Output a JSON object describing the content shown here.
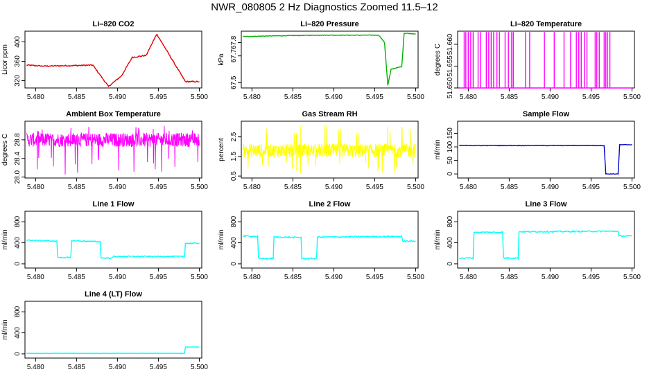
{
  "title": "NWR_080805  2 Hz Diagnostics Zoomed 11.5–12",
  "chart_data": [
    {
      "type": "line",
      "title": "Li–820 CO2",
      "ylabel": "Licor ppm",
      "color": "#e00000",
      "x_ticks": [
        "5.480",
        "5.485",
        "5.490",
        "5.495",
        "5.500"
      ],
      "y_ticks": [
        {
          "v": 320,
          "l": "320"
        },
        {
          "v": 360,
          "l": "360"
        },
        {
          "v": 400,
          "l": "400"
        }
      ],
      "ylim": [
        305,
        422
      ],
      "xlim": [
        5.4787,
        5.5003
      ],
      "noise": 1.2,
      "steps": [
        [
          5.4789,
          352
        ],
        [
          5.481,
          350
        ],
        [
          5.487,
          352
        ],
        [
          5.4889,
          308
        ],
        [
          5.4905,
          330
        ],
        [
          5.4918,
          368
        ],
        [
          5.4935,
          372
        ],
        [
          5.4948,
          416
        ],
        [
          5.4983,
          318
        ],
        [
          5.5,
          318
        ]
      ]
    },
    {
      "type": "line",
      "title": "Li–820 Pressure",
      "ylabel": "kPa",
      "color": "#00b000",
      "x_ticks": [
        "5.480",
        "5.485",
        "5.490",
        "5.495",
        "5.500"
      ],
      "y_ticks": [
        {
          "v": 67.5,
          "l": "67.5"
        },
        {
          "v": 67.7,
          "l": "67.7"
        },
        {
          "v": 67.8,
          "l": "67.8"
        }
      ],
      "ylim": [
        67.46,
        67.885
      ],
      "xlim": [
        5.4787,
        5.5003
      ],
      "noise": 0.002,
      "steps": [
        [
          5.4789,
          67.845
        ],
        [
          5.483,
          67.85
        ],
        [
          5.488,
          67.855
        ],
        [
          5.4955,
          67.855
        ],
        [
          5.4962,
          67.8
        ],
        [
          5.4966,
          67.48
        ],
        [
          5.497,
          67.6
        ],
        [
          5.4983,
          67.62
        ],
        [
          5.4986,
          67.87
        ],
        [
          5.5,
          67.865
        ]
      ]
    },
    {
      "type": "spike",
      "title": "Li–820 Temperature",
      "ylabel": "degrees C",
      "color": "#ff00ff",
      "x_ticks": [
        "5.480",
        "5.485",
        "5.490",
        "5.495",
        "5.500"
      ],
      "y_ticks": [
        {
          "v": 51.65,
          "l": "51.650"
        },
        {
          "v": 51.655,
          "l": "51.655"
        },
        {
          "v": 51.66,
          "l": "51.660"
        }
      ],
      "ylim": [
        51.65,
        51.663
      ],
      "xlim": [
        5.4787,
        5.5003
      ],
      "base": 51.65,
      "top": 51.6628,
      "spikes": [
        5.4795,
        5.4797,
        5.48,
        5.4803,
        5.4806,
        5.4812,
        5.4815,
        5.4822,
        5.4825,
        5.4828,
        5.4831,
        5.4835,
        5.4838,
        5.4845,
        5.4849,
        5.4853,
        5.4855,
        5.487,
        5.4875,
        5.4893,
        5.4905,
        5.4917,
        5.4925,
        5.4932,
        5.4935,
        5.4938,
        5.4942,
        5.4945,
        5.4955,
        5.4957,
        5.496,
        5.4966,
        5.4968,
        5.497,
        5.4973
      ]
    },
    {
      "type": "noise",
      "title": "Ambient Box Temperature",
      "ylabel": "degrees C",
      "color": "#ff00ff",
      "x_ticks": [
        "5.480",
        "5.485",
        "5.490",
        "5.495",
        "5.500"
      ],
      "y_ticks": [
        {
          "v": 28.0,
          "l": "28.0"
        },
        {
          "v": 28.4,
          "l": "28.4"
        },
        {
          "v": 28.8,
          "l": "28.8"
        }
      ],
      "ylim": [
        27.98,
        29.2
      ],
      "xlim": [
        5.4787,
        5.5003
      ],
      "center": 28.8,
      "spread": 0.15,
      "outlier_lo": 28.05,
      "outlier_hi": 29.1
    },
    {
      "type": "noise",
      "title": "Gas Stream RH",
      "ylabel": "percent",
      "color": "#ffff00",
      "x_ticks": [
        "5.480",
        "5.485",
        "5.490",
        "5.495",
        "5.500"
      ],
      "y_ticks": [
        {
          "v": 0.5,
          "l": "0.5"
        },
        {
          "v": 1.5,
          "l": "1.5"
        },
        {
          "v": 2.5,
          "l": "2.5"
        }
      ],
      "ylim": [
        0.4,
        3.3
      ],
      "xlim": [
        5.4787,
        5.5003
      ],
      "center": 1.8,
      "spread": 0.35,
      "outlier_lo": 0.6,
      "outlier_hi": 3.1
    },
    {
      "type": "line",
      "title": "Sample Flow",
      "ylabel": "ml/min",
      "color": "#0000cc",
      "x_ticks": [
        "5.480",
        "5.485",
        "5.490",
        "5.495",
        "5.500"
      ],
      "y_ticks": [
        {
          "v": 0,
          "l": "0"
        },
        {
          "v": 50,
          "l": "50"
        },
        {
          "v": 100,
          "l": "100"
        },
        {
          "v": 150,
          "l": "150"
        }
      ],
      "ylim": [
        -15,
        195
      ],
      "xlim": [
        5.4787,
        5.5003
      ],
      "noise": 1.0,
      "steps": [
        [
          5.4789,
          105
        ],
        [
          5.4966,
          105
        ],
        [
          5.4968,
          0
        ],
        [
          5.4983,
          0
        ],
        [
          5.4985,
          108
        ],
        [
          5.5,
          108
        ]
      ]
    },
    {
      "type": "line",
      "title": "Line 1 Flow",
      "ylabel": "ml/min",
      "color": "#00ffff",
      "x_ticks": [
        "5.480",
        "5.485",
        "5.490",
        "5.495",
        "5.500"
      ],
      "y_ticks": [
        {
          "v": 0,
          "l": "0"
        },
        {
          "v": 400,
          "l": "400"
        },
        {
          "v": 800,
          "l": "800"
        }
      ],
      "ylim": [
        -80,
        1000
      ],
      "xlim": [
        5.4787,
        5.5003
      ],
      "noise": 10,
      "steps": [
        [
          5.4789,
          450
        ],
        [
          5.4826,
          430
        ],
        [
          5.4827,
          120
        ],
        [
          5.4843,
          120
        ],
        [
          5.4844,
          440
        ],
        [
          5.4879,
          420
        ],
        [
          5.488,
          110
        ],
        [
          5.4894,
          110
        ],
        [
          5.4895,
          140
        ],
        [
          5.4982,
          140
        ],
        [
          5.4983,
          390
        ],
        [
          5.5,
          390
        ]
      ]
    },
    {
      "type": "line",
      "title": "Line 2 Flow",
      "ylabel": "ml/min",
      "color": "#00ffff",
      "x_ticks": [
        "5.480",
        "5.485",
        "5.490",
        "5.495",
        "5.500"
      ],
      "y_ticks": [
        {
          "v": 0,
          "l": "0"
        },
        {
          "v": 400,
          "l": "400"
        },
        {
          "v": 800,
          "l": "800"
        }
      ],
      "ylim": [
        -80,
        1000
      ],
      "xlim": [
        5.4787,
        5.5003
      ],
      "noise": 12,
      "steps": [
        [
          5.4789,
          530
        ],
        [
          5.4807,
          520
        ],
        [
          5.4808,
          100
        ],
        [
          5.4826,
          100
        ],
        [
          5.4827,
          510
        ],
        [
          5.486,
          500
        ],
        [
          5.4861,
          100
        ],
        [
          5.4879,
          100
        ],
        [
          5.488,
          510
        ],
        [
          5.4983,
          520
        ],
        [
          5.4984,
          430
        ],
        [
          5.5,
          430
        ]
      ]
    },
    {
      "type": "line",
      "title": "Line 3 Flow",
      "ylabel": "ml/min",
      "color": "#00ffff",
      "x_ticks": [
        "5.480",
        "5.485",
        "5.490",
        "5.495",
        "5.500"
      ],
      "y_ticks": [
        {
          "v": 0,
          "l": "0"
        },
        {
          "v": 400,
          "l": "400"
        },
        {
          "v": 800,
          "l": "800"
        }
      ],
      "ylim": [
        -80,
        1000
      ],
      "xlim": [
        5.4787,
        5.5003
      ],
      "noise": 12,
      "steps": [
        [
          5.4789,
          110
        ],
        [
          5.4806,
          110
        ],
        [
          5.4807,
          600
        ],
        [
          5.4842,
          600
        ],
        [
          5.4843,
          110
        ],
        [
          5.4861,
          110
        ],
        [
          5.4862,
          610
        ],
        [
          5.4983,
          620
        ],
        [
          5.4984,
          530
        ],
        [
          5.5,
          530
        ]
      ]
    },
    {
      "type": "line",
      "title": "Line 4 (LT) Flow",
      "ylabel": "ml/min",
      "color": "#00ffff",
      "x_ticks": [
        "5.480",
        "5.485",
        "5.490",
        "5.495",
        "5.500"
      ],
      "y_ticks": [
        {
          "v": 0,
          "l": "0"
        },
        {
          "v": 400,
          "l": "400"
        },
        {
          "v": 800,
          "l": "800"
        }
      ],
      "ylim": [
        -80,
        1000
      ],
      "xlim": [
        5.4787,
        5.5003
      ],
      "noise": 3,
      "steps": [
        [
          5.4789,
          10
        ],
        [
          5.4982,
          10
        ],
        [
          5.4983,
          130
        ],
        [
          5.5,
          130
        ]
      ]
    }
  ]
}
